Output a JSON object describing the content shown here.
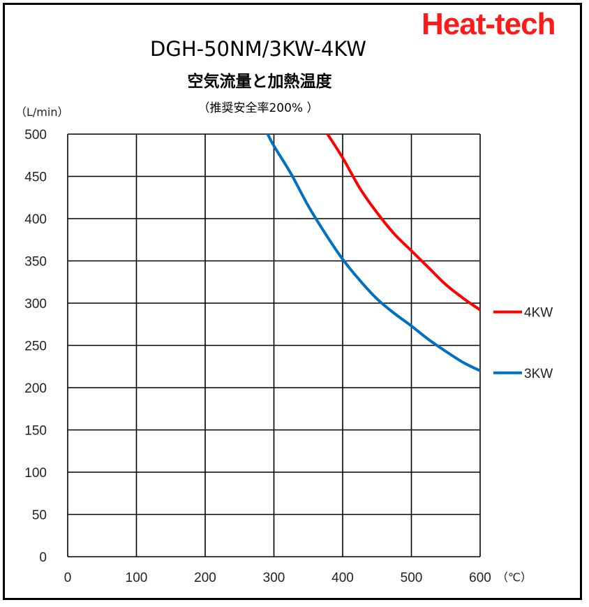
{
  "brand": {
    "logo_text": "Heat-tech",
    "color": "#ff1a1a"
  },
  "chart_data": {
    "type": "line",
    "title": "DGH-50NM/3KW-4KW",
    "subtitle": "空気流量と加熱温度",
    "note": "（推奨安全率200% ）",
    "xlabel": "（℃）",
    "ylabel": "（L/min）",
    "xlim": [
      0,
      600
    ],
    "ylim": [
      0,
      500
    ],
    "xticks": [
      0,
      100,
      200,
      300,
      400,
      500,
      600
    ],
    "yticks": [
      0,
      50,
      100,
      150,
      200,
      250,
      300,
      350,
      400,
      450,
      500
    ],
    "grid": true,
    "legend_position": "right",
    "series": [
      {
        "name": "4KW",
        "color": "#ff0000",
        "x": [
          378,
          400,
          425,
          450,
          475,
          500,
          525,
          550,
          575,
          600
        ],
        "y": [
          500,
          472,
          436,
          407,
          382,
          362,
          342,
          322,
          306,
          292
        ]
      },
      {
        "name": "3KW",
        "color": "#0070c0",
        "x": [
          291,
          300,
          325,
          350,
          375,
          400,
          425,
          450,
          475,
          500,
          525,
          550,
          575,
          600
        ],
        "y": [
          500,
          486,
          453,
          415,
          382,
          352,
          327,
          305,
          288,
          273,
          257,
          243,
          230,
          220
        ]
      }
    ]
  }
}
